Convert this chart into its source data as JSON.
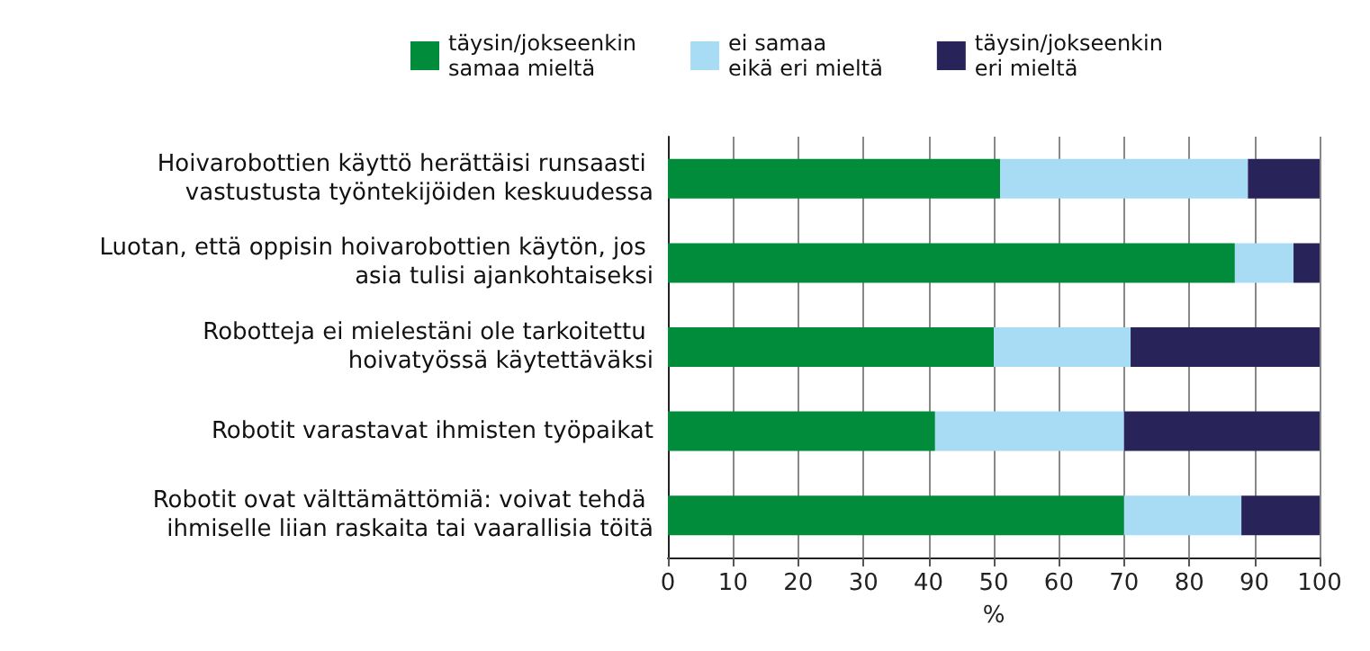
{
  "chart_data": {
    "type": "bar",
    "orientation": "horizontal",
    "stacked": true,
    "xlabel": "%",
    "categories": [
      "Hoivarobottien käyttö herättäisi runsaasti vastustusta työntekijöiden keskuudessa",
      "Luotan, että oppisin hoivarobottien käytön, jos asia tulisi ajankohtaiseksi",
      "Robotteja ei mielestäni ole tarkoitettu hoivatyössä käytettäväksi",
      "Robotit varastavat ihmisten työpaikat",
      "Robotit ovat välttämättömiä: voivat tehdä ihmiselle liian raskaita tai vaarallisia töitä"
    ],
    "series": [
      {
        "name": "täysin/jokseenkin samaa mieltä",
        "color": "#008c3a",
        "values": [
          51,
          87,
          50,
          41,
          70
        ]
      },
      {
        "name": "ei samaa eikä eri mieltä",
        "color": "#a8dcf5",
        "values": [
          38,
          9,
          21,
          29,
          18
        ]
      },
      {
        "name": "täysin/jokseenkin eri mieltä",
        "color": "#28245a",
        "values": [
          11,
          4,
          29,
          30,
          12
        ]
      }
    ],
    "xlim": [
      0,
      100
    ],
    "xticks": [
      0,
      10,
      20,
      30,
      40,
      50,
      60,
      70,
      80,
      90,
      100
    ],
    "grid": "x",
    "legend": "top"
  }
}
